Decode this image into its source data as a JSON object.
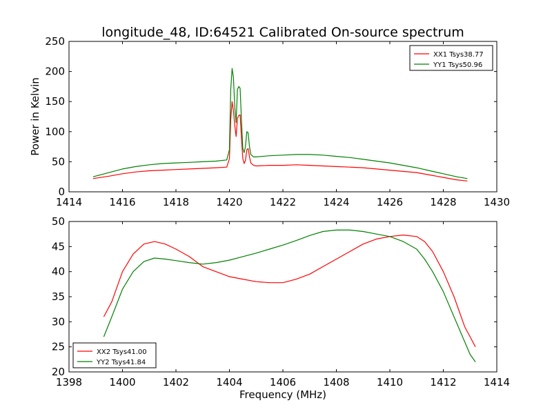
{
  "figure": {
    "title": "longitude_48, ID:64521 Calibrated On-source spectrum"
  },
  "chart_data": [
    {
      "type": "line",
      "title": "longitude_48, ID:64521 Calibrated On-source spectrum",
      "xlabel": "",
      "ylabel": "Power in Kelvin",
      "xlim": [
        1414,
        1430
      ],
      "ylim": [
        0,
        250
      ],
      "xticks": [
        1414,
        1416,
        1418,
        1420,
        1422,
        1424,
        1426,
        1428,
        1430
      ],
      "yticks": [
        0,
        50,
        100,
        150,
        200,
        250
      ],
      "grid": false,
      "legend_position": "top-right",
      "series": [
        {
          "name": "XX1 Tsys38.77",
          "color": "#ff0000",
          "x": [
            1414.9,
            1415.5,
            1416.0,
            1416.5,
            1417.0,
            1417.5,
            1418.0,
            1418.5,
            1419.0,
            1419.5,
            1419.9,
            1420.0,
            1420.05,
            1420.1,
            1420.15,
            1420.2,
            1420.25,
            1420.3,
            1420.35,
            1420.4,
            1420.45,
            1420.5,
            1420.55,
            1420.6,
            1420.65,
            1420.7,
            1420.75,
            1420.8,
            1420.9,
            1421.0,
            1421.5,
            1422.0,
            1422.5,
            1423.0,
            1423.5,
            1424.0,
            1424.5,
            1425.0,
            1425.5,
            1426.0,
            1426.5,
            1427.0,
            1427.5,
            1428.0,
            1428.5,
            1428.9
          ],
          "y": [
            22,
            26,
            30,
            33,
            35,
            36,
            37,
            38,
            39,
            40,
            41,
            55,
            120,
            150,
            135,
            110,
            92,
            122,
            127,
            128,
            90,
            55,
            47,
            52,
            70,
            72,
            58,
            48,
            44,
            43,
            44,
            44,
            45,
            44,
            43,
            42,
            41,
            40,
            38,
            36,
            34,
            32,
            28,
            24,
            20,
            18
          ]
        },
        {
          "name": "YY1 Tsys50.96",
          "color": "#008000",
          "x": [
            1414.9,
            1415.5,
            1416.0,
            1416.5,
            1417.0,
            1417.5,
            1418.0,
            1418.5,
            1419.0,
            1419.5,
            1419.9,
            1420.0,
            1420.05,
            1420.1,
            1420.15,
            1420.2,
            1420.25,
            1420.3,
            1420.35,
            1420.4,
            1420.45,
            1420.5,
            1420.55,
            1420.6,
            1420.65,
            1420.7,
            1420.75,
            1420.8,
            1420.9,
            1421.0,
            1421.5,
            1422.0,
            1422.5,
            1423.0,
            1423.5,
            1424.0,
            1424.5,
            1425.0,
            1425.5,
            1426.0,
            1426.5,
            1427.0,
            1427.5,
            1428.0,
            1428.5,
            1428.9
          ],
          "y": [
            25,
            32,
            38,
            42,
            45,
            47,
            48,
            49,
            50,
            51,
            53,
            70,
            170,
            205,
            190,
            140,
            115,
            170,
            175,
            172,
            120,
            72,
            65,
            75,
            100,
            98,
            75,
            62,
            58,
            58,
            60,
            61,
            62,
            62,
            61,
            59,
            57,
            54,
            51,
            48,
            44,
            40,
            35,
            30,
            25,
            22
          ]
        }
      ]
    },
    {
      "type": "line",
      "title": "",
      "xlabel": "Frequency (MHz)",
      "ylabel": "",
      "xlim": [
        1398,
        1414
      ],
      "ylim": [
        20,
        50
      ],
      "xticks": [
        1398,
        1400,
        1402,
        1404,
        1406,
        1408,
        1410,
        1412,
        1414
      ],
      "yticks": [
        20,
        25,
        30,
        35,
        40,
        45,
        50
      ],
      "grid": false,
      "legend_position": "bottom-left",
      "series": [
        {
          "name": "XX2 Tsys41.00",
          "color": "#ff0000",
          "x": [
            1399.3,
            1399.6,
            1400.0,
            1400.4,
            1400.8,
            1401.2,
            1401.6,
            1402.0,
            1402.5,
            1403.0,
            1403.5,
            1404.0,
            1404.5,
            1405.0,
            1405.5,
            1406.0,
            1406.5,
            1407.0,
            1407.5,
            1408.0,
            1408.5,
            1409.0,
            1409.5,
            1410.0,
            1410.5,
            1411.0,
            1411.3,
            1411.6,
            1412.0,
            1412.4,
            1412.8,
            1413.0,
            1413.2
          ],
          "y": [
            31,
            34,
            40,
            43.5,
            45.5,
            46,
            45.5,
            44.5,
            43,
            41,
            40,
            39,
            38.5,
            38,
            37.8,
            37.8,
            38.5,
            39.5,
            41,
            42.5,
            44,
            45.5,
            46.5,
            47,
            47.3,
            47,
            46,
            44,
            40,
            35,
            29,
            27,
            25
          ]
        },
        {
          "name": "YY2 Tsys41.84",
          "color": "#008000",
          "x": [
            1399.3,
            1399.6,
            1400.0,
            1400.4,
            1400.8,
            1401.2,
            1401.6,
            1402.0,
            1402.5,
            1403.0,
            1403.5,
            1404.0,
            1404.5,
            1405.0,
            1405.5,
            1406.0,
            1406.5,
            1407.0,
            1407.5,
            1408.0,
            1408.5,
            1409.0,
            1409.5,
            1410.0,
            1410.5,
            1411.0,
            1411.3,
            1411.6,
            1412.0,
            1412.4,
            1412.8,
            1413.0,
            1413.2
          ],
          "y": [
            27,
            31,
            36.5,
            40,
            42,
            42.7,
            42.5,
            42.2,
            41.8,
            41.5,
            41.8,
            42.3,
            43,
            43.7,
            44.5,
            45.3,
            46.2,
            47.2,
            48,
            48.3,
            48.3,
            48,
            47.5,
            47,
            46,
            44.5,
            42.5,
            40,
            36,
            31,
            26,
            23.5,
            22
          ]
        }
      ]
    }
  ]
}
